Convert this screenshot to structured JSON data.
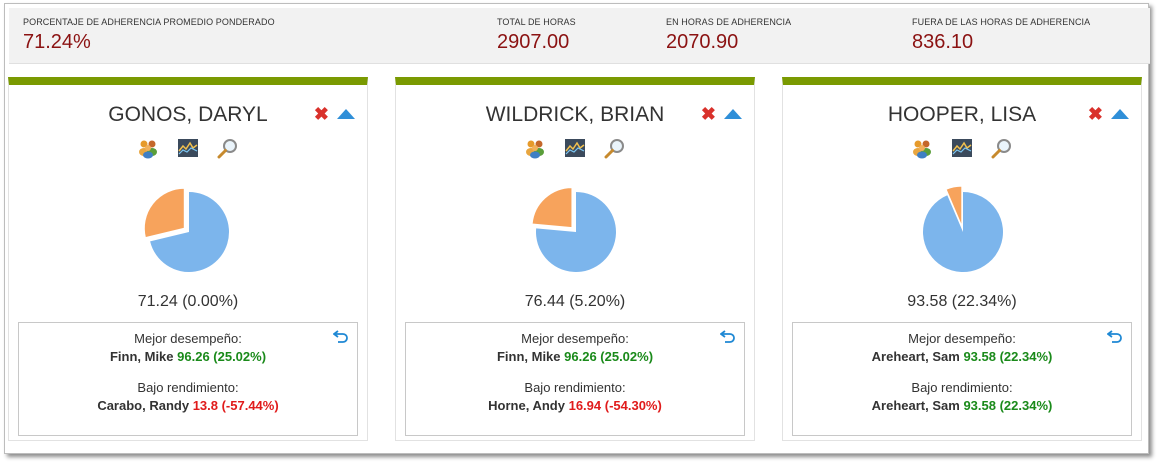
{
  "summary": {
    "weighted_avg": {
      "label": "PORCENTAJE DE ADHERENCIA PROMEDIO PONDERADO",
      "value": "71.24%"
    },
    "total_hours": {
      "label": "TOTAL DE HORAS",
      "value": "2907.00"
    },
    "in_hours": {
      "label": "EN HORAS DE ADHERENCIA",
      "value": "2070.90"
    },
    "out_hours": {
      "label": "FUERA DE LAS HORAS DE ADHERENCIA",
      "value": "836.10"
    }
  },
  "colors": {
    "accent_bar": "#7a9a01",
    "pie_main": "#7cb5ec",
    "pie_slice": "#f7a35c",
    "value_red": "#8b1212",
    "good": "#1a8a1a",
    "bad": "#e01b1b"
  },
  "icons": [
    "team-icon",
    "trend-chart-icon",
    "magnifier-icon",
    "close-icon",
    "collapse-up-icon",
    "undo-icon"
  ],
  "cards": [
    {
      "name": "GONOS, DARYL",
      "adherence": 71.24,
      "score": "71.24 (0.00%)",
      "best_label": "Mejor desempeño:",
      "best_name": "Finn, Mike",
      "best_value": "96.26 (25.02%)",
      "low_label": "Bajo rendimiento:",
      "low_name": "Carabo, Randy",
      "low_value": "13.8 (-57.44%)",
      "low_is_bad": true
    },
    {
      "name": "WILDRICK, BRIAN",
      "adherence": 76.44,
      "score": "76.44 (5.20%)",
      "best_label": "Mejor desempeño:",
      "best_name": "Finn, Mike",
      "best_value": "96.26 (25.02%)",
      "low_label": "Bajo rendimiento:",
      "low_name": "Horne, Andy",
      "low_value": "16.94 (-54.30%)",
      "low_is_bad": true
    },
    {
      "name": "HOOPER, LISA",
      "adherence": 93.58,
      "score": "93.58 (22.34%)",
      "best_label": "Mejor desempeño:",
      "best_name": "Areheart, Sam",
      "best_value": "93.58 (22.34%)",
      "low_label": "Bajo rendimiento:",
      "low_name": "Areheart, Sam",
      "low_value": "93.58 (22.34%)",
      "low_is_bad": false
    }
  ]
}
